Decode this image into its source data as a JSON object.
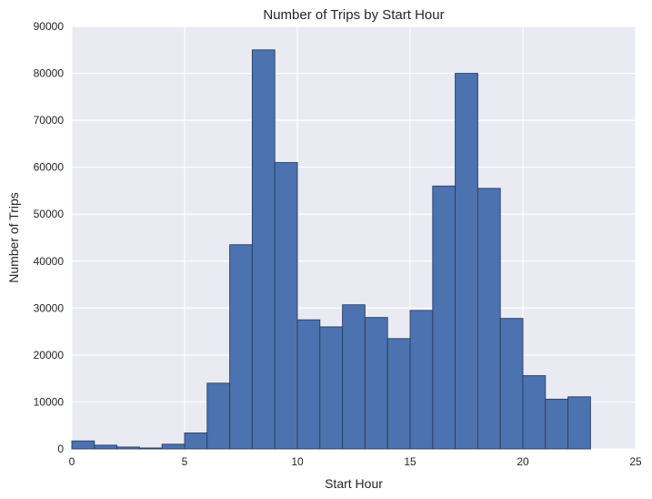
{
  "chart_data": {
    "type": "bar",
    "title": "Number of Trips by Start Hour",
    "xlabel": "Start Hour",
    "ylabel": "Number of Trips",
    "xlim": [
      0,
      25
    ],
    "ylim": [
      0,
      90000
    ],
    "xticks": [
      0,
      5,
      10,
      15,
      20,
      25
    ],
    "yticks": [
      0,
      10000,
      20000,
      30000,
      40000,
      50000,
      60000,
      70000,
      80000,
      90000
    ],
    "grid": true,
    "bins": [
      {
        "start": 0.0,
        "end": 1.0,
        "value": 1700
      },
      {
        "start": 1.0,
        "end": 2.0,
        "value": 800
      },
      {
        "start": 2.0,
        "end": 3.0,
        "value": 400
      },
      {
        "start": 3.0,
        "end": 4.0,
        "value": 200
      },
      {
        "start": 4.0,
        "end": 5.0,
        "value": 1000
      },
      {
        "start": 5.0,
        "end": 6.0,
        "value": 3400
      },
      {
        "start": 6.0,
        "end": 7.0,
        "value": 14000
      },
      {
        "start": 7.0,
        "end": 8.0,
        "value": 43500
      },
      {
        "start": 8.0,
        "end": 9.0,
        "value": 85000
      },
      {
        "start": 9.0,
        "end": 10.0,
        "value": 61000
      },
      {
        "start": 10.0,
        "end": 11.0,
        "value": 27500
      },
      {
        "start": 11.0,
        "end": 12.0,
        "value": 26000
      },
      {
        "start": 12.0,
        "end": 13.0,
        "value": 30700
      },
      {
        "start": 13.0,
        "end": 14.0,
        "value": 28000
      },
      {
        "start": 14.0,
        "end": 15.0,
        "value": 23500
      },
      {
        "start": 15.0,
        "end": 16.0,
        "value": 29500
      },
      {
        "start": 16.0,
        "end": 17.0,
        "value": 56000
      },
      {
        "start": 17.0,
        "end": 18.0,
        "value": 80000
      },
      {
        "start": 18.0,
        "end": 19.0,
        "value": 55500
      },
      {
        "start": 19.0,
        "end": 20.0,
        "value": 27800
      },
      {
        "start": 20.0,
        "end": 21.0,
        "value": 15600
      },
      {
        "start": 21.0,
        "end": 22.0,
        "value": 10600
      },
      {
        "start": 22.0,
        "end": 23.0,
        "value": 11100
      }
    ],
    "colors": {
      "bar_fill": "#4c72b0",
      "bar_edge": "#2b3f5e",
      "plot_background": "#eaeaf2",
      "grid": "#ffffff",
      "text": "#262626"
    }
  }
}
